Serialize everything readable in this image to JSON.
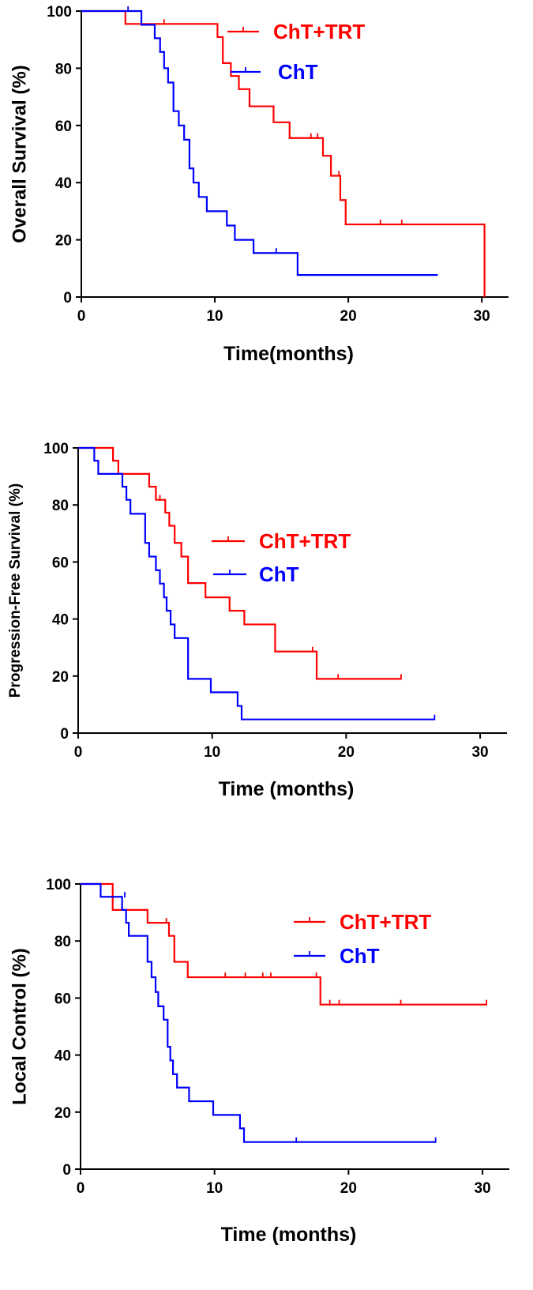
{
  "chart_data": [
    {
      "type": "line",
      "step": true,
      "panel": "overall-survival",
      "xlabel": "Time(months)",
      "ylabel": "Overall Survival (%)",
      "xlim": [
        0,
        32
      ],
      "ylim": [
        0,
        100
      ],
      "xticks": [
        0,
        10,
        20,
        30
      ],
      "yticks": [
        0,
        20,
        40,
        60,
        80,
        100
      ],
      "legend_position": "top-right",
      "series": [
        {
          "name": "ChT+TRT",
          "color": "#ff0000",
          "x": [
            0,
            3.3,
            10.2,
            10.6,
            11.2,
            11.8,
            12.6,
            14.4,
            15.6,
            18.1,
            18.7,
            19.4,
            19.8,
            30.2,
            30.2
          ],
          "y": [
            100,
            95.5,
            90.9,
            81.8,
            77.3,
            72.7,
            66.7,
            61.1,
            55.6,
            49.4,
            42.4,
            33.9,
            25.4,
            25.4,
            0
          ],
          "censor_x": [
            6.2,
            17.2,
            17.7,
            19.3,
            22.4,
            24.0
          ],
          "censor_y": [
            95.5,
            55.6,
            55.6,
            42.4,
            25.4,
            25.4
          ]
        },
        {
          "name": "ChT",
          "color": "#0000ff",
          "x": [
            0,
            4.5,
            5.5,
            5.9,
            6.2,
            6.5,
            6.9,
            7.3,
            7.7,
            8.1,
            8.4,
            8.8,
            9.4,
            10.9,
            11.5,
            12.9,
            16.2,
            26.7
          ],
          "y": [
            100,
            95.2,
            90.5,
            85.7,
            80.0,
            75.0,
            65.0,
            60.0,
            55.0,
            45.0,
            40.0,
            35.0,
            30.0,
            25.0,
            20.0,
            15.4,
            7.7,
            7.7
          ],
          "censor_x": [
            3.5,
            14.6
          ],
          "censor_y": [
            100,
            15.4
          ]
        }
      ],
      "legend": [
        "ChT+TRT",
        "ChT"
      ]
    },
    {
      "type": "line",
      "step": true,
      "panel": "progression-free-survival",
      "xlabel": "Time (months)",
      "ylabel": "Progression-Free Survival (%)",
      "xlim": [
        0,
        32
      ],
      "ylim": [
        0,
        100
      ],
      "xticks": [
        0,
        10,
        20,
        30
      ],
      "yticks": [
        0,
        20,
        40,
        60,
        80,
        100
      ],
      "legend_position": "center-right",
      "series": [
        {
          "name": "ChT+TRT",
          "color": "#ff0000",
          "x": [
            0,
            2.6,
            3.0,
            5.3,
            5.8,
            6.5,
            6.8,
            7.2,
            7.7,
            8.2,
            9.5,
            11.3,
            12.4,
            14.7,
            17.8,
            24.1
          ],
          "y": [
            100,
            95.5,
            90.9,
            86.4,
            81.8,
            77.3,
            72.7,
            66.7,
            61.9,
            52.6,
            47.6,
            42.9,
            38.1,
            28.6,
            19.0,
            19.0
          ],
          "censor_x": [
            6.1,
            17.5,
            19.4,
            24.1
          ],
          "censor_y": [
            81.8,
            28.6,
            19.0,
            19.0
          ]
        },
        {
          "name": "ChT",
          "color": "#0000ff",
          "x": [
            0,
            1.2,
            1.5,
            3.3,
            3.6,
            3.9,
            5.0,
            5.3,
            5.8,
            6.1,
            6.4,
            6.6,
            6.9,
            7.2,
            8.2,
            9.9,
            11.9,
            12.2,
            26.6
          ],
          "y": [
            100,
            95.5,
            90.9,
            86.4,
            81.8,
            76.9,
            66.7,
            61.9,
            57.1,
            52.4,
            47.6,
            42.9,
            38.1,
            33.3,
            19.0,
            14.3,
            9.5,
            4.8,
            4.8
          ],
          "censor_x": [
            26.6
          ],
          "censor_y": [
            4.8
          ]
        }
      ],
      "legend": [
        "ChT+TRT",
        "ChT"
      ]
    },
    {
      "type": "line",
      "step": true,
      "panel": "local-control",
      "xlabel": "Time (months)",
      "ylabel": "Local Control (%)",
      "xlim": [
        0,
        32
      ],
      "ylim": [
        0,
        100
      ],
      "xticks": [
        0,
        10,
        20,
        30
      ],
      "yticks": [
        0,
        20,
        40,
        60,
        80,
        100
      ],
      "legend_position": "top-right",
      "series": [
        {
          "name": "ChT+TRT",
          "color": "#ff0000",
          "x": [
            0,
            2.4,
            5.0,
            6.6,
            7.0,
            8.0,
            17.9,
            30.3
          ],
          "y": [
            100,
            90.9,
            86.4,
            81.8,
            72.7,
            67.3,
            57.7,
            57.7
          ],
          "censor_x": [
            6.4,
            10.8,
            12.3,
            13.6,
            14.2,
            17.6,
            18.6,
            19.3,
            23.9,
            30.3
          ],
          "censor_y": [
            86.4,
            67.3,
            67.3,
            67.3,
            67.3,
            67.3,
            57.7,
            57.7,
            57.7,
            57.7
          ]
        },
        {
          "name": "ChT",
          "color": "#0000ff",
          "x": [
            0,
            1.5,
            3.1,
            3.4,
            3.6,
            5.0,
            5.3,
            5.6,
            5.8,
            6.2,
            6.5,
            6.7,
            6.9,
            7.2,
            8.1,
            9.9,
            11.9,
            12.2,
            26.5
          ],
          "y": [
            100,
            95.5,
            90.9,
            86.4,
            81.8,
            72.7,
            67.3,
            62.1,
            57.1,
            52.4,
            42.9,
            38.1,
            33.3,
            28.6,
            23.8,
            19.0,
            14.3,
            9.5,
            9.5
          ],
          "censor_x": [
            3.3,
            16.1,
            26.5
          ],
          "censor_y": [
            95.5,
            9.5,
            9.5
          ]
        }
      ],
      "legend": [
        "ChT+TRT",
        "ChT"
      ]
    }
  ]
}
